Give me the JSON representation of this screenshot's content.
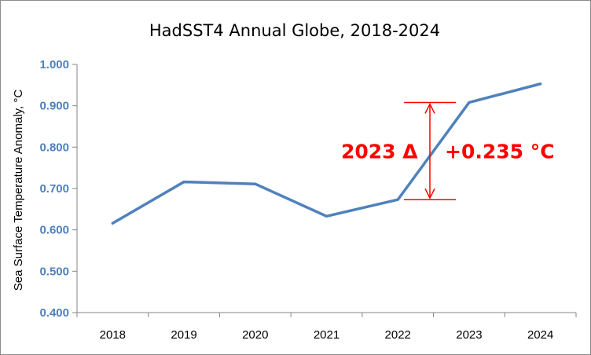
{
  "chart_data": {
    "type": "line",
    "title": "HadSST4 Annual Globe, 2018-2024",
    "xlabel": "",
    "ylabel": "Sea Surface Temperature Anomaly, °C",
    "categories": [
      "2018",
      "2019",
      "2020",
      "2021",
      "2022",
      "2023",
      "2024"
    ],
    "series": [
      {
        "values": [
          0.616,
          0.716,
          0.711,
          0.633,
          0.673,
          0.908,
          0.953
        ]
      }
    ],
    "ylim": [
      0.4,
      1.0
    ],
    "yticks": [
      1.0,
      0.9,
      0.8,
      0.7,
      0.6,
      0.5,
      0.4
    ],
    "ytick_labels": [
      "1.000",
      "0.900",
      "0.800",
      "0.700",
      "0.600",
      "0.500",
      "0.400"
    ],
    "grid": false,
    "legend": "none",
    "annotation": {
      "label": "2023 Δ",
      "value_text": "+0.235 °C",
      "from_value": 0.673,
      "to_value": 0.908
    }
  },
  "colors": {
    "series": "#4f81bd",
    "tick_labels": "#4f81bd",
    "axis": "#868686",
    "annotation": "#ff0000"
  }
}
